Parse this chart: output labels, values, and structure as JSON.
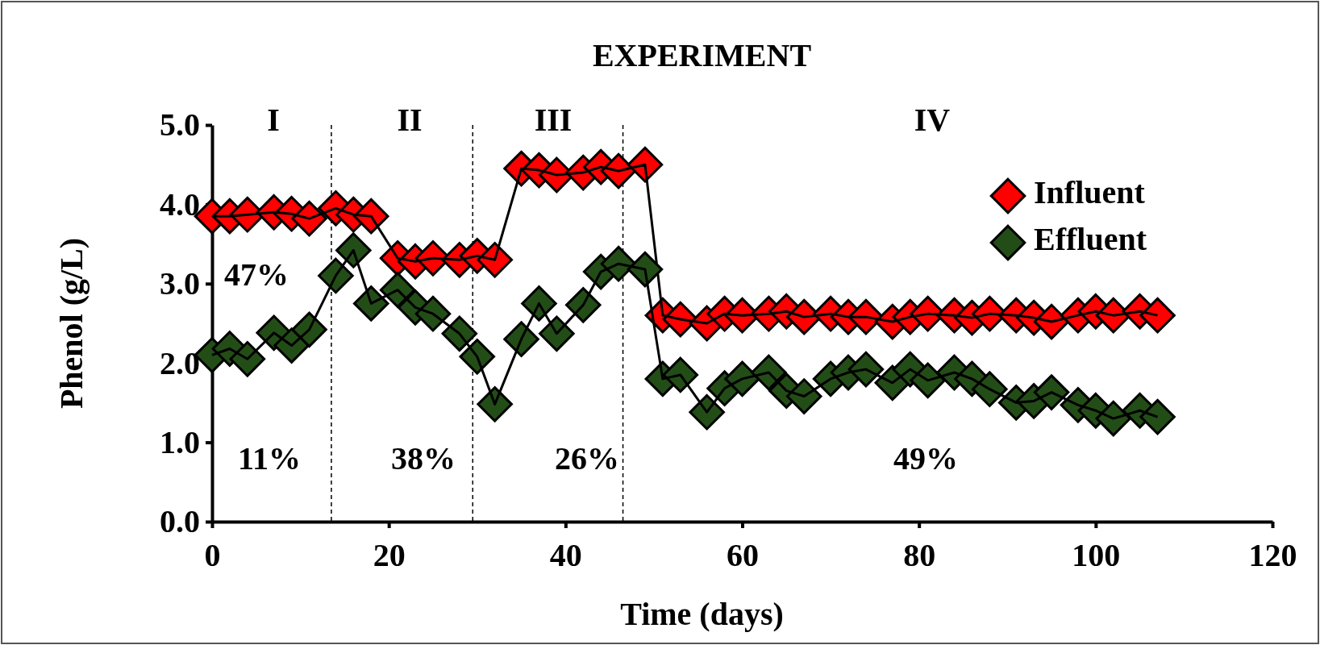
{
  "chart_data": {
    "type": "line",
    "title": "EXPERIMENT",
    "xlabel": "Time (days)",
    "ylabel": "Phenol (g/L)",
    "x": [
      0,
      2,
      4,
      7,
      9,
      11,
      14,
      16,
      18,
      21,
      23,
      25,
      28,
      30,
      32,
      35,
      37,
      39,
      42,
      44,
      46,
      49,
      51,
      53,
      56,
      58,
      60,
      63,
      65,
      67,
      70,
      72,
      74,
      77,
      79,
      81,
      84,
      86,
      88,
      91,
      93,
      95,
      98,
      100,
      102,
      105,
      107
    ],
    "series": [
      {
        "name": "Influent",
        "color": "#ff0000",
        "values": [
          3.85,
          3.85,
          3.87,
          3.9,
          3.88,
          3.82,
          3.95,
          3.87,
          3.85,
          3.32,
          3.28,
          3.32,
          3.3,
          3.35,
          3.3,
          4.45,
          4.43,
          4.37,
          4.4,
          4.47,
          4.42,
          4.5,
          2.6,
          2.55,
          2.5,
          2.62,
          2.6,
          2.62,
          2.65,
          2.58,
          2.62,
          2.58,
          2.58,
          2.52,
          2.58,
          2.62,
          2.6,
          2.57,
          2.62,
          2.6,
          2.57,
          2.52,
          2.6,
          2.65,
          2.6,
          2.65,
          2.6
        ]
      },
      {
        "name": "Effluent",
        "color": "#234d17",
        "values": [
          2.1,
          2.18,
          2.05,
          2.38,
          2.22,
          2.42,
          3.1,
          3.42,
          2.75,
          2.92,
          2.7,
          2.62,
          2.37,
          2.08,
          1.48,
          2.3,
          2.75,
          2.37,
          2.73,
          3.15,
          3.25,
          3.18,
          1.8,
          1.85,
          1.38,
          1.68,
          1.8,
          1.88,
          1.65,
          1.58,
          1.8,
          1.88,
          1.92,
          1.75,
          1.92,
          1.78,
          1.88,
          1.8,
          1.67,
          1.5,
          1.52,
          1.63,
          1.47,
          1.4,
          1.3,
          1.4,
          1.32
        ]
      }
    ],
    "xlim": [
      0,
      120
    ],
    "xticks": [
      0,
      20,
      40,
      60,
      80,
      100,
      120
    ],
    "ylim": [
      0,
      5
    ],
    "yticks": [
      {
        "value": 0,
        "label": "0.0"
      },
      {
        "value": 1,
        "label": "1.0"
      },
      {
        "value": 2,
        "label": "2.0"
      },
      {
        "value": 3,
        "label": "3.0"
      },
      {
        "value": 4,
        "label": "4.0"
      },
      {
        "value": 5,
        "label": "5.0"
      }
    ],
    "ref_lines": [
      {
        "axis": "x",
        "value": 13.5,
        "line_style": "dashed"
      },
      {
        "axis": "x",
        "value": 29.5,
        "line_style": "dashed"
      },
      {
        "axis": "x",
        "value": 46.5,
        "line_style": "dashed"
      }
    ],
    "annotations": [
      "I",
      "II",
      "III",
      "IV",
      "47%",
      "11%",
      "38%",
      "26%",
      "49%"
    ],
    "legend": "top right",
    "marker": "diamond",
    "line_style": "solid",
    "grid": false
  }
}
